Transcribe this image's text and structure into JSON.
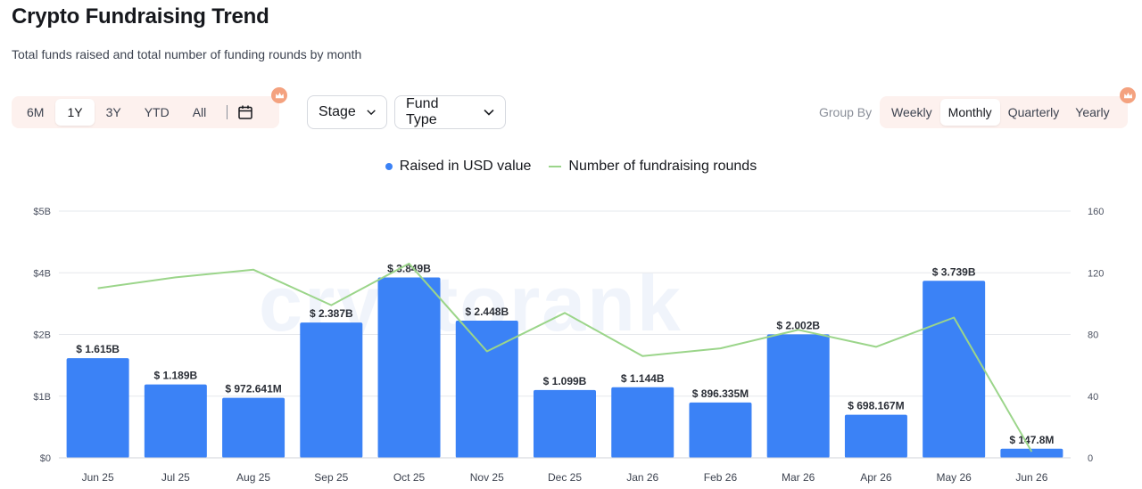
{
  "page": {
    "title": "Crypto Fundraising Trend",
    "subtitle": "Total funds raised and total number of funding rounds by month"
  },
  "time_range": {
    "options": [
      "6M",
      "1Y",
      "3Y",
      "YTD",
      "All"
    ],
    "active": "1Y"
  },
  "filters": {
    "stage_label": "Stage",
    "fund_type_label": "Fund Type"
  },
  "group_by": {
    "label": "Group By",
    "options": [
      "Weekly",
      "Monthly",
      "Quarterly",
      "Yearly"
    ],
    "active": "Monthly"
  },
  "watermark": "cryptorank",
  "colors": {
    "bar": "#3b82f6",
    "line": "#9bd58a",
    "accent": "#f4a27f",
    "segment_bg": "#fdf1ee"
  },
  "chart_data": {
    "type": "bar",
    "categories": [
      "Jun 25",
      "Jul 25",
      "Aug 25",
      "Sep 25",
      "Oct 25",
      "Nov 25",
      "Dec 25",
      "Jan 26",
      "Feb 26",
      "Mar 26",
      "Apr 26",
      "May 26",
      "Jun 26"
    ],
    "series": [
      {
        "name": "Raised in USD value",
        "type": "bar",
        "axis": "left",
        "values": [
          1.615,
          1.189,
          0.972641,
          2.387,
          3.849,
          2.448,
          1.099,
          1.144,
          0.896335,
          2.002,
          0.698167,
          3.739,
          0.1478
        ],
        "labels": [
          "$ 1.615B",
          "$ 1.189B",
          "$ 972.641M",
          "$ 2.387B",
          "$ 3.849B",
          "$ 2.448B",
          "$ 1.099B",
          "$ 1.144B",
          "$ 896.335M",
          "$ 2.002B",
          "$ 698.167M",
          "$ 3.739B",
          "$ 147.8M"
        ]
      },
      {
        "name": "Number of fundraising rounds",
        "type": "line",
        "axis": "right",
        "values": [
          110,
          117,
          122,
          99,
          126,
          69,
          94,
          66,
          71,
          83,
          72,
          91,
          4
        ]
      }
    ],
    "y_left": {
      "ticks": [
        0,
        1,
        2,
        4,
        5
      ],
      "tick_labels": [
        "$0",
        "$1B",
        "$2B",
        "$4B",
        "$5B"
      ],
      "comment_ticks_positions_data": [
        0,
        1,
        2,
        3,
        4
      ]
    },
    "y_right": {
      "ticks": [
        0,
        40,
        80,
        120,
        160
      ],
      "ylim": [
        0,
        160
      ]
    },
    "grid": true,
    "legend": "top-center"
  }
}
